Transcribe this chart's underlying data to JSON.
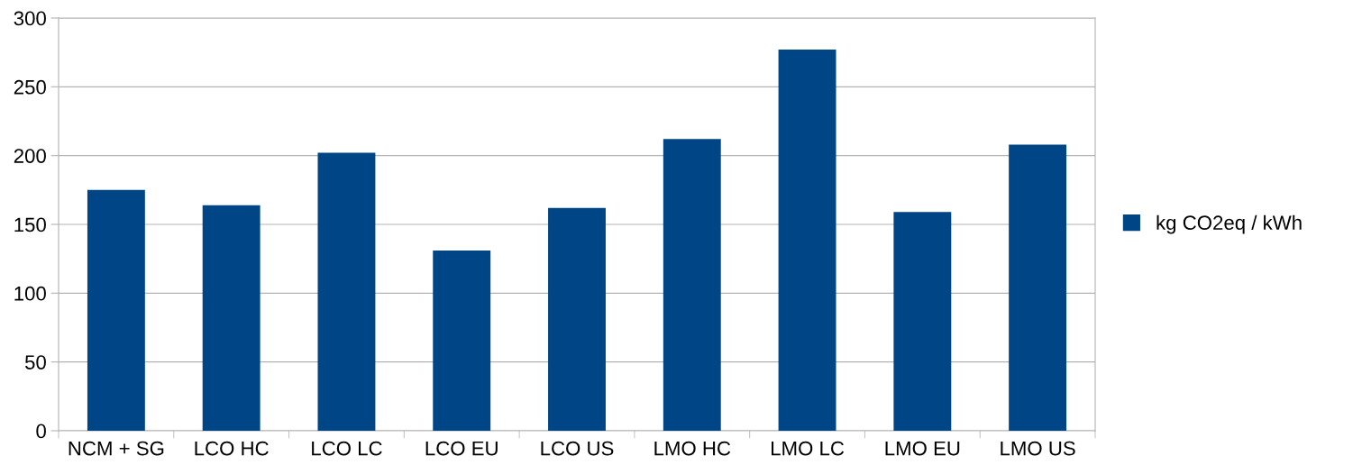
{
  "chart_data": {
    "type": "bar",
    "categories": [
      "NCM + SG",
      "LCO HC",
      "LCO LC",
      "LCO EU",
      "LCO US",
      "LMO HC",
      "LMO LC",
      "LMO EU",
      "LMO US"
    ],
    "series": [
      {
        "name": "kg CO2eq / kWh",
        "color": "#004586",
        "values": [
          175,
          164,
          202,
          131,
          162,
          212,
          277,
          159,
          208
        ]
      }
    ],
    "ylim": [
      0,
      300
    ],
    "yticks": [
      0,
      50,
      100,
      150,
      200,
      250,
      300
    ],
    "grid": "y",
    "legend": "right"
  }
}
